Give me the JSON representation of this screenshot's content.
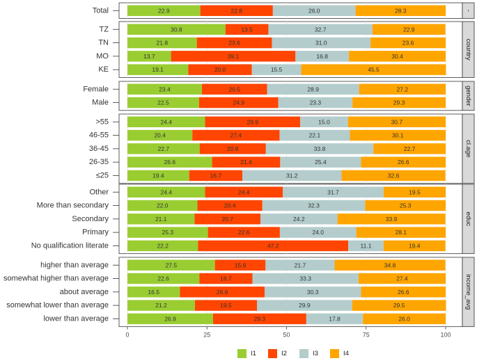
{
  "chart_data": {
    "type": "bar",
    "orientation": "horizontal-stacked-percent",
    "xlim": [
      0,
      100
    ],
    "xticks": [
      "0",
      "25",
      "50",
      "75",
      "100"
    ],
    "grid": true,
    "legend_position": "bottom",
    "series_names": [
      "I1",
      "I2",
      "I3",
      "I4"
    ],
    "colors": [
      "#9acd32",
      "#ff4500",
      "#b4cccc",
      "#ffa500"
    ],
    "facets": [
      {
        "strip": "-",
        "rows": [
          {
            "label": "Total",
            "values": [
              22.9,
              22.8,
              26.0,
              28.3
            ]
          }
        ]
      },
      {
        "strip": "country",
        "rows": [
          {
            "label": "TZ",
            "values": [
              30.8,
              13.5,
              32.7,
              22.9
            ]
          },
          {
            "label": "TN",
            "values": [
              21.8,
              23.6,
              31.0,
              23.6
            ]
          },
          {
            "label": "MO",
            "values": [
              13.7,
              39.1,
              16.8,
              30.4
            ]
          },
          {
            "label": "KE",
            "values": [
              19.1,
              20.0,
              15.5,
              45.5
            ]
          }
        ]
      },
      {
        "strip": "gender",
        "rows": [
          {
            "label": "Female",
            "values": [
              23.4,
              20.5,
              28.9,
              27.2
            ]
          },
          {
            "label": "Male",
            "values": [
              22.5,
              24.9,
              23.3,
              29.3
            ]
          }
        ]
      },
      {
        "strip": "cl.age",
        "rows": [
          {
            "label": ">55",
            "values": [
              24.4,
              29.9,
              15.0,
              30.7
            ]
          },
          {
            "label": "46-55",
            "values": [
              20.4,
              27.4,
              22.1,
              30.1
            ]
          },
          {
            "label": "36-45",
            "values": [
              22.7,
              20.8,
              33.8,
              22.7
            ]
          },
          {
            "label": "26-35",
            "values": [
              26.6,
              21.4,
              25.4,
              26.6
            ]
          },
          {
            "label": "≤25",
            "values": [
              19.4,
              16.7,
              31.2,
              32.6
            ]
          }
        ]
      },
      {
        "strip": "educ",
        "rows": [
          {
            "label": "Other",
            "values": [
              24.4,
              24.4,
              31.7,
              19.5
            ]
          },
          {
            "label": "More than secondary",
            "values": [
              22.0,
              20.4,
              32.3,
              25.3
            ]
          },
          {
            "label": "Secondary",
            "values": [
              21.1,
              20.7,
              24.2,
              33.9
            ]
          },
          {
            "label": "Primary",
            "values": [
              25.3,
              22.6,
              24.0,
              28.1
            ]
          },
          {
            "label": "No qualification literate",
            "values": [
              22.2,
              47.2,
              11.1,
              19.4
            ]
          }
        ]
      },
      {
        "strip": "income_avg",
        "rows": [
          {
            "label": "higher than average",
            "values": [
              27.5,
              15.9,
              21.7,
              34.8
            ]
          },
          {
            "label": "somewhat higher than average",
            "values": [
              22.6,
              16.7,
              33.3,
              27.4
            ]
          },
          {
            "label": "about average",
            "values": [
              16.5,
              26.6,
              30.3,
              26.6
            ]
          },
          {
            "label": "somewhat lower than average",
            "values": [
              21.2,
              19.5,
              29.9,
              29.5
            ]
          },
          {
            "label": "lower than average",
            "values": [
              26.9,
              29.3,
              17.8,
              26.0
            ]
          }
        ]
      }
    ]
  }
}
